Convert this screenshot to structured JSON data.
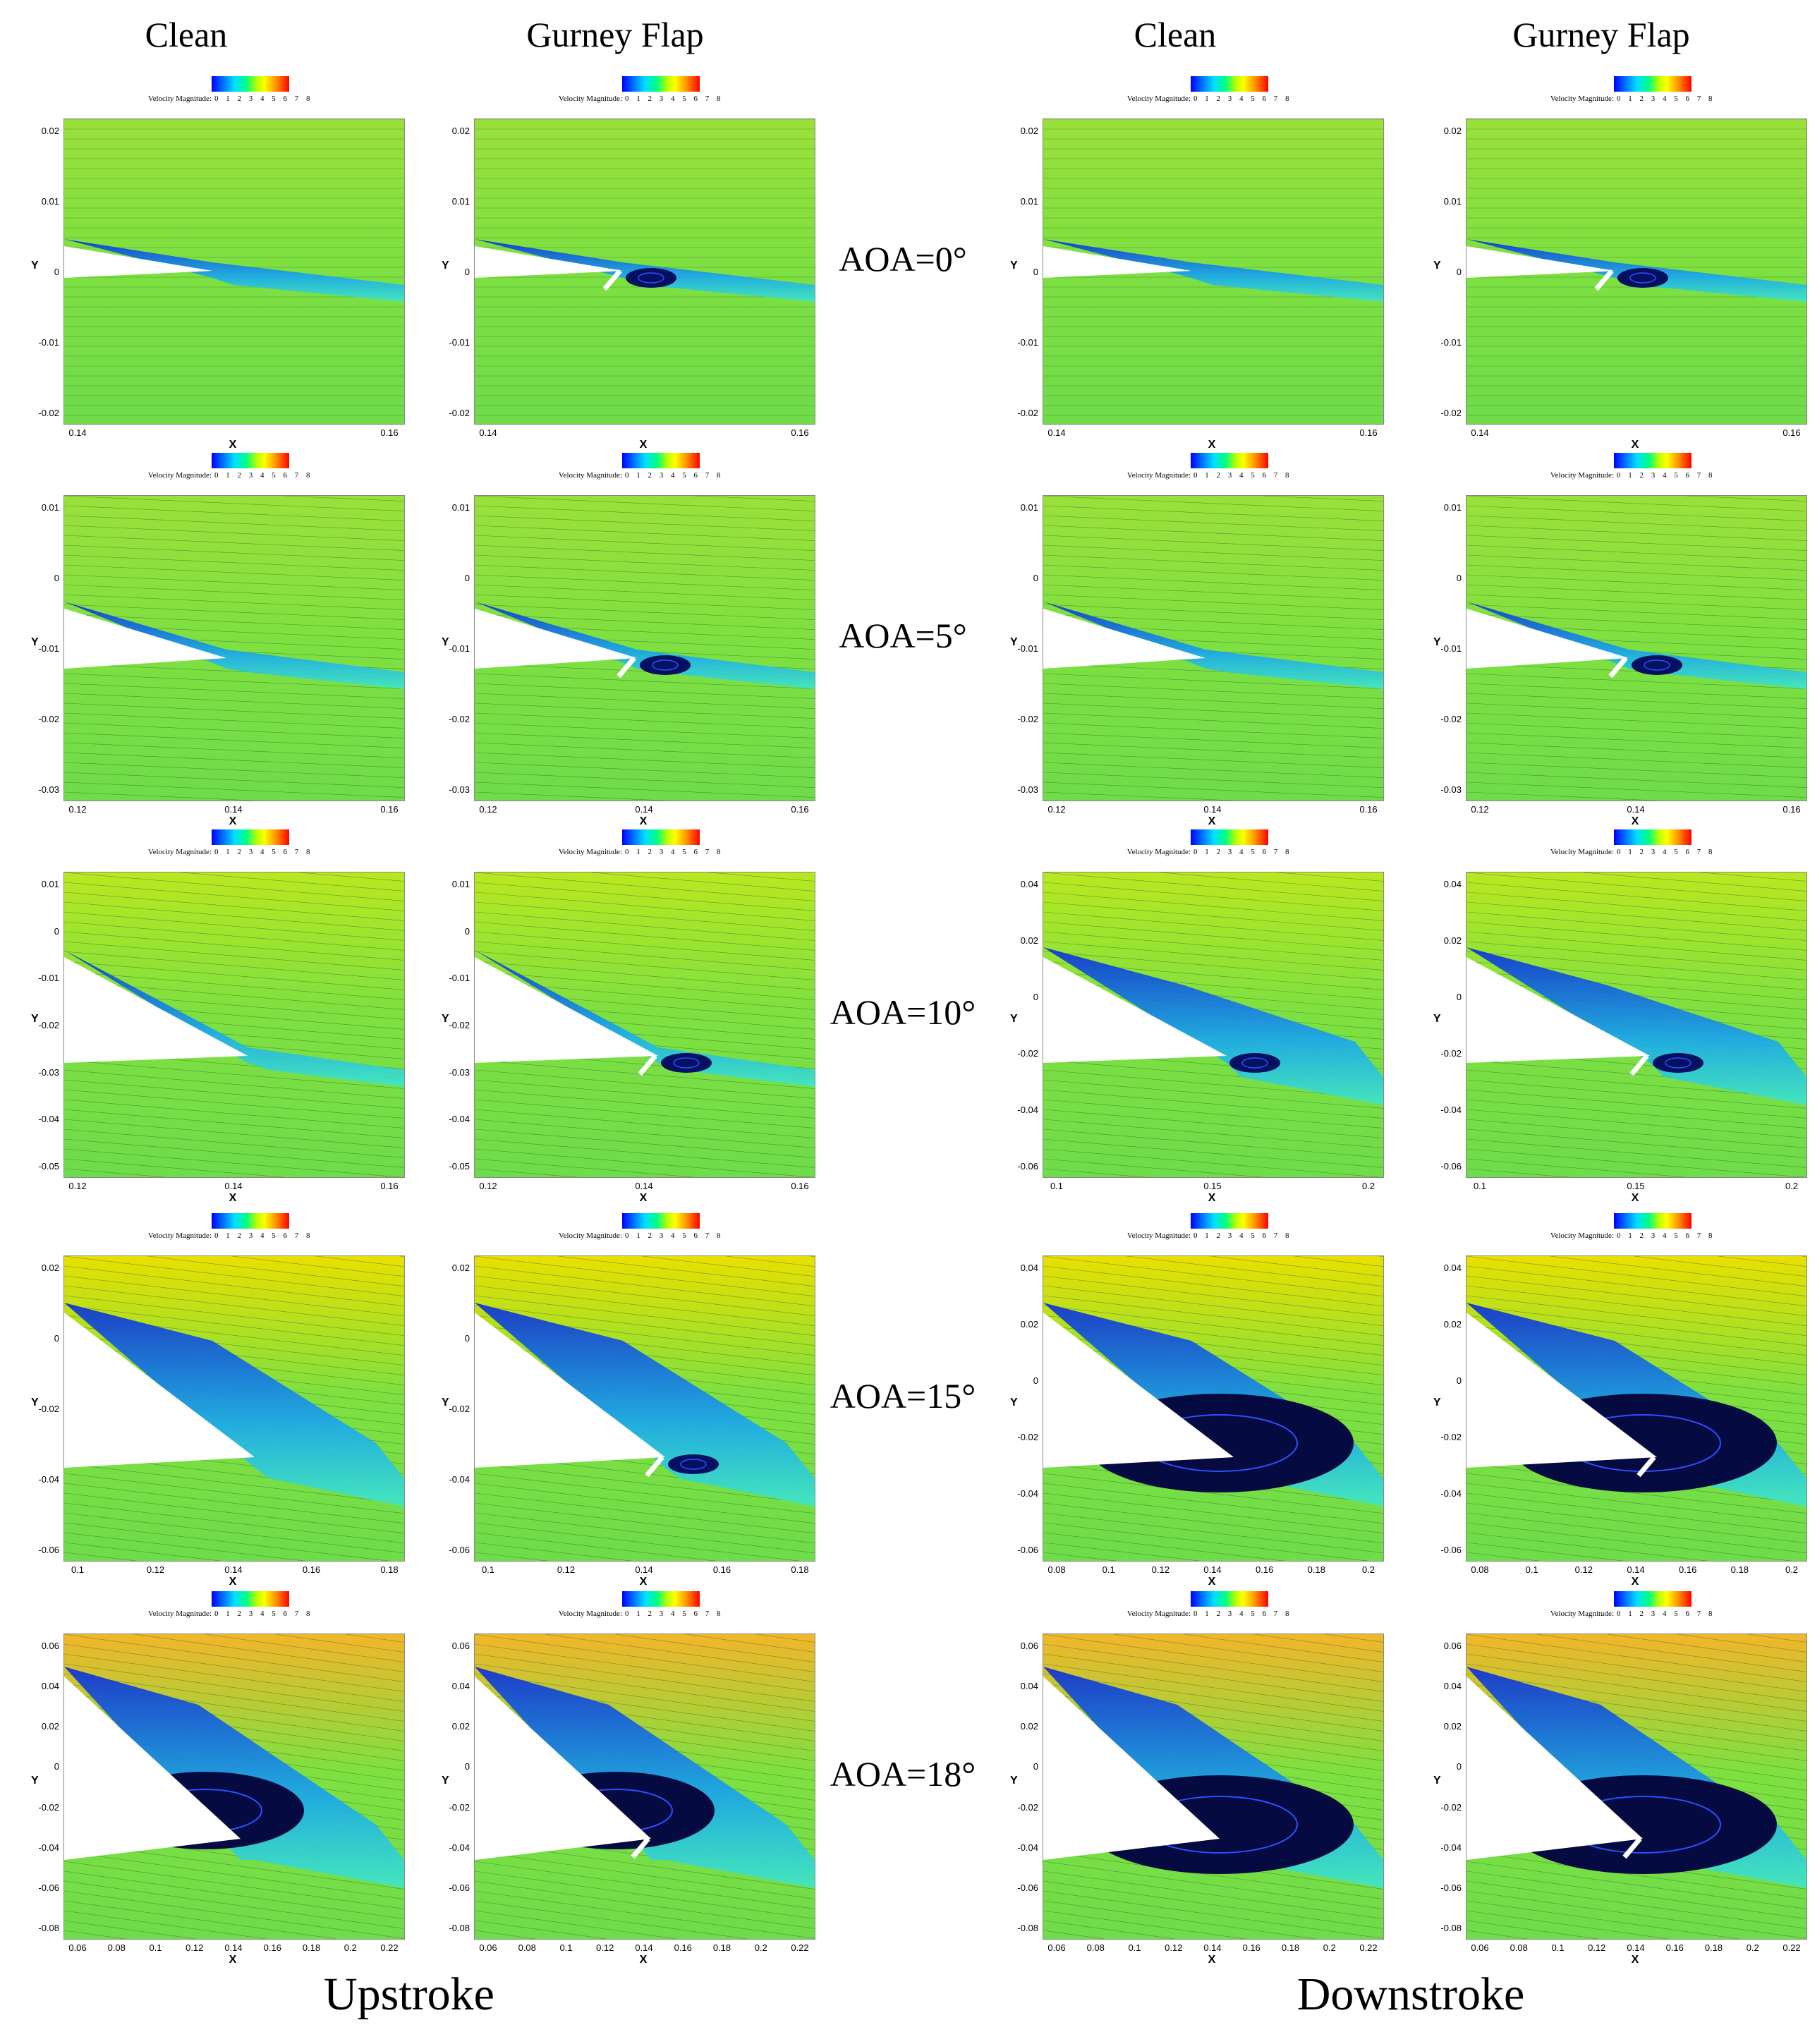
{
  "column_titles": [
    "Clean",
    "Gurney Flap",
    "Clean",
    "Gurney Flap"
  ],
  "stroke_labels": [
    "Upstroke",
    "Downstroke"
  ],
  "colorbar": {
    "title": "Velocity Magnitude:",
    "ticks": "0 1 2 3 4 5 6 7 8"
  },
  "axis_labels": {
    "x": "X",
    "y": "Y"
  },
  "rows": [
    {
      "aoa": "AOA=0°",
      "panels": [
        {
          "yticks": [
            "0.02",
            "0.01",
            "0",
            "-0.01",
            "-0.02"
          ],
          "xticks": [
            "0.14",
            "0.16"
          ]
        },
        {
          "yticks": [
            "0.02",
            "0.01",
            "0",
            "-0.01",
            "-0.02"
          ],
          "xticks": [
            "0.14",
            "0.16"
          ]
        },
        {
          "yticks": [
            "0.02",
            "0.01",
            "0",
            "-0.01",
            "-0.02"
          ],
          "xticks": [
            "0.14",
            "0.16"
          ]
        },
        {
          "yticks": [
            "0.02",
            "0.01",
            "0",
            "-0.01",
            "-0.02"
          ],
          "xticks": [
            "0.14",
            "0.16"
          ]
        }
      ]
    },
    {
      "aoa": "AOA=5°",
      "panels": [
        {
          "yticks": [
            "0.01",
            "0",
            "-0.01",
            "-0.02",
            "-0.03"
          ],
          "xticks": [
            "0.12",
            "0.14",
            "0.16"
          ]
        },
        {
          "yticks": [
            "0.01",
            "0",
            "-0.01",
            "-0.02",
            "-0.03"
          ],
          "xticks": [
            "0.12",
            "0.14",
            "0.16"
          ]
        },
        {
          "yticks": [
            "0.01",
            "0",
            "-0.01",
            "-0.02",
            "-0.03"
          ],
          "xticks": [
            "0.12",
            "0.14",
            "0.16"
          ]
        },
        {
          "yticks": [
            "0.01",
            "0",
            "-0.01",
            "-0.02",
            "-0.03"
          ],
          "xticks": [
            "0.12",
            "0.14",
            "0.16"
          ]
        }
      ]
    },
    {
      "aoa": "AOA=10°",
      "panels": [
        {
          "yticks": [
            "0.01",
            "0",
            "-0.01",
            "-0.02",
            "-0.03",
            "-0.04",
            "-0.05"
          ],
          "xticks": [
            "0.12",
            "0.14",
            "0.16"
          ]
        },
        {
          "yticks": [
            "0.01",
            "0",
            "-0.01",
            "-0.02",
            "-0.03",
            "-0.04",
            "-0.05"
          ],
          "xticks": [
            "0.12",
            "0.14",
            "0.16"
          ]
        },
        {
          "yticks": [
            "0.04",
            "0.02",
            "0",
            "-0.02",
            "-0.04",
            "-0.06"
          ],
          "xticks": [
            "0.1",
            "0.15",
            "0.2"
          ]
        },
        {
          "yticks": [
            "0.04",
            "0.02",
            "0",
            "-0.02",
            "-0.04",
            "-0.06"
          ],
          "xticks": [
            "0.1",
            "0.15",
            "0.2"
          ]
        }
      ]
    },
    {
      "aoa": "AOA=15°",
      "panels": [
        {
          "yticks": [
            "0.02",
            "0",
            "-0.02",
            "-0.04",
            "-0.06"
          ],
          "xticks": [
            "0.1",
            "0.12",
            "0.14",
            "0.16",
            "0.18"
          ]
        },
        {
          "yticks": [
            "0.02",
            "0",
            "-0.02",
            "-0.04",
            "-0.06"
          ],
          "xticks": [
            "0.1",
            "0.12",
            "0.14",
            "0.16",
            "0.18"
          ]
        },
        {
          "yticks": [
            "0.04",
            "0.02",
            "0",
            "-0.02",
            "-0.04",
            "-0.06"
          ],
          "xticks": [
            "0.08",
            "0.1",
            "0.12",
            "0.14",
            "0.16",
            "0.18",
            "0.2"
          ]
        },
        {
          "yticks": [
            "0.04",
            "0.02",
            "0",
            "-0.02",
            "-0.04",
            "-0.06"
          ],
          "xticks": [
            "0.08",
            "0.1",
            "0.12",
            "0.14",
            "0.16",
            "0.18",
            "0.2"
          ]
        }
      ]
    },
    {
      "aoa": "AOA=18°",
      "panels": [
        {
          "yticks": [
            "0.06",
            "0.04",
            "0.02",
            "0",
            "-0.02",
            "-0.04",
            "-0.06",
            "-0.08"
          ],
          "xticks": [
            "0.06",
            "0.08",
            "0.1",
            "0.12",
            "0.14",
            "0.16",
            "0.18",
            "0.2",
            "0.22"
          ]
        },
        {
          "yticks": [
            "0.06",
            "0.04",
            "0.02",
            "0",
            "-0.02",
            "-0.04",
            "-0.06",
            "-0.08"
          ],
          "xticks": [
            "0.06",
            "0.08",
            "0.1",
            "0.12",
            "0.14",
            "0.16",
            "0.18",
            "0.2",
            "0.22"
          ]
        },
        {
          "yticks": [
            "0.06",
            "0.04",
            "0.02",
            "0",
            "-0.02",
            "-0.04",
            "-0.06",
            "-0.08"
          ],
          "xticks": [
            "0.06",
            "0.08",
            "0.1",
            "0.12",
            "0.14",
            "0.16",
            "0.18",
            "0.2",
            "0.22"
          ]
        },
        {
          "yticks": [
            "0.06",
            "0.04",
            "0.02",
            "0",
            "-0.02",
            "-0.04",
            "-0.06",
            "-0.08"
          ],
          "xticks": [
            "0.06",
            "0.08",
            "0.1",
            "0.12",
            "0.14",
            "0.16",
            "0.18",
            "0.2",
            "0.22"
          ]
        }
      ]
    }
  ]
}
